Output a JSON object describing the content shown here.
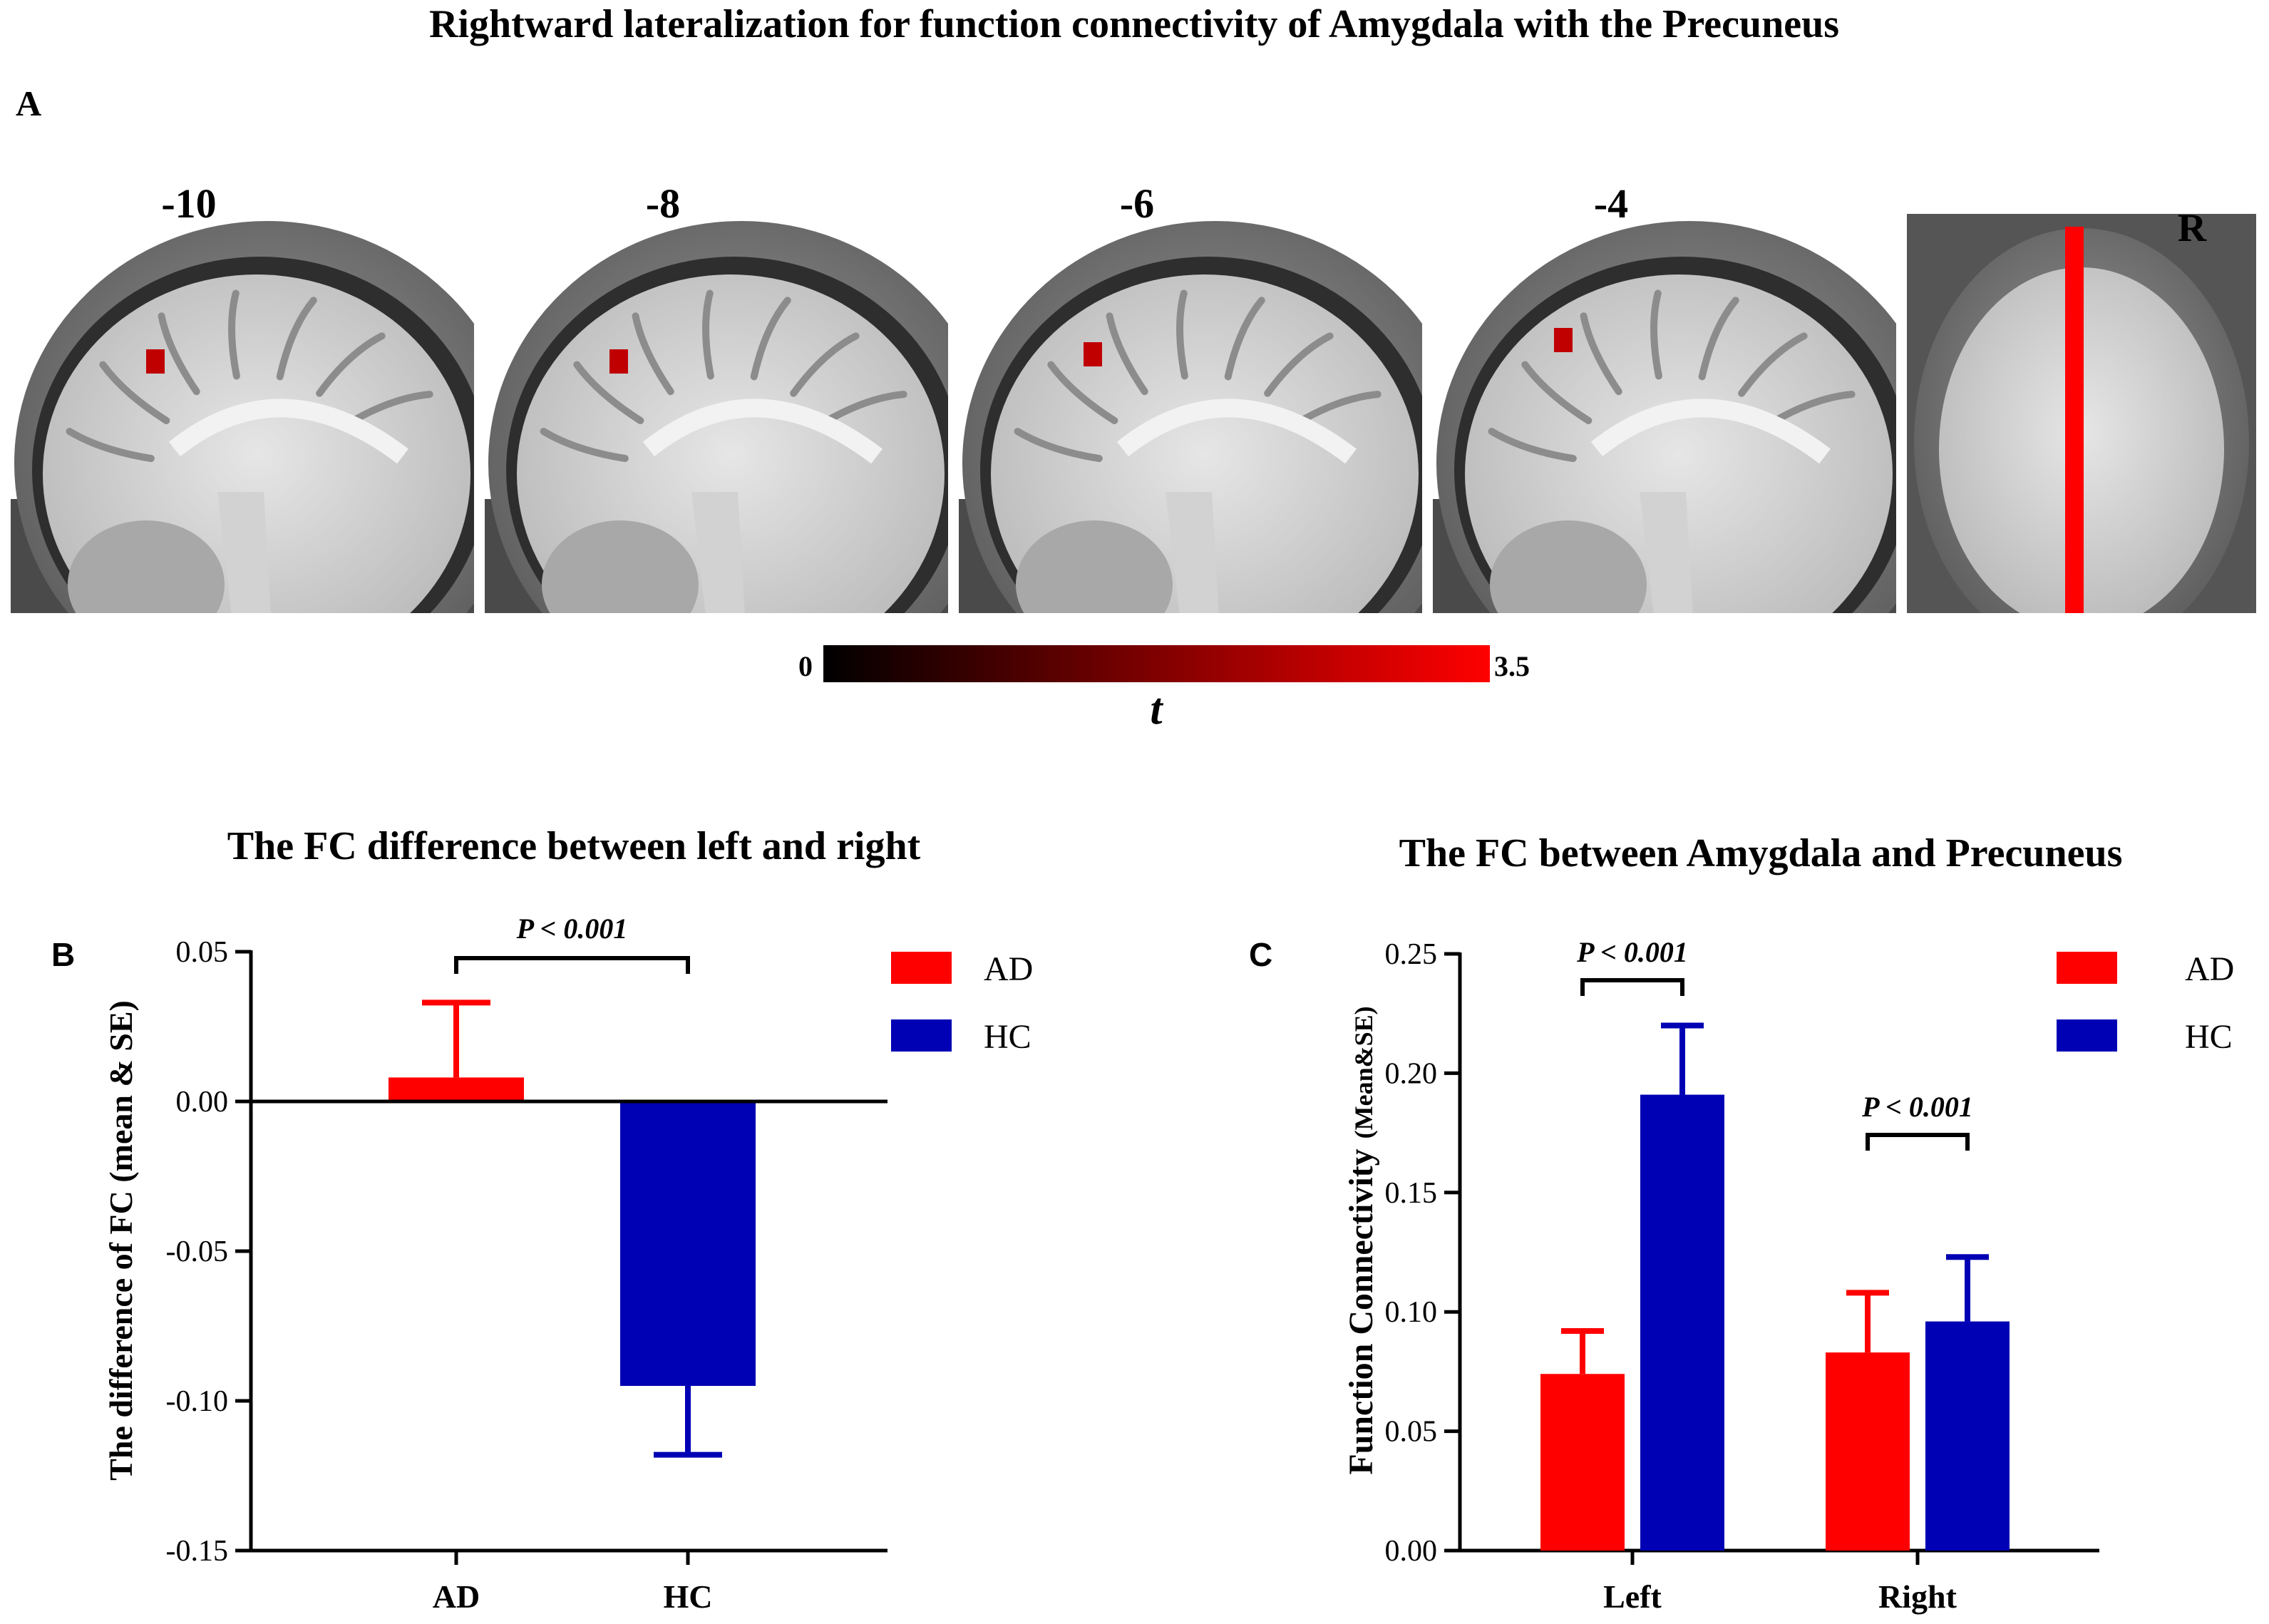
{
  "title": "Rightward lateralization for function connectivity of Amygdala with the Precuneus",
  "panel_a": {
    "label": "A",
    "slices": [
      {
        "label": "-10",
        "kind": "sagittal"
      },
      {
        "label": "-8",
        "kind": "sagittal"
      },
      {
        "label": "-6",
        "kind": "sagittal"
      },
      {
        "label": "-4",
        "kind": "sagittal"
      },
      {
        "label": "",
        "kind": "coronal"
      }
    ],
    "orientation_label": "R",
    "colorbar": {
      "min_label": "0",
      "max_label": "3.5",
      "symbol": "t",
      "colors": [
        "#000000",
        "#ff0000"
      ]
    }
  },
  "chart_data": [
    {
      "panel": "B",
      "type": "bar",
      "title": "The FC difference between left and right",
      "ylabel": "The difference of  FC (mean & SE)",
      "xlabel": "",
      "categories": [
        "AD",
        "HC"
      ],
      "values": [
        0.008,
        -0.095
      ],
      "errors": [
        0.025,
        0.023
      ],
      "colors": [
        "#ff0000",
        "#0000b4"
      ],
      "ylim": [
        -0.15,
        0.05
      ],
      "yticks": [
        0.05,
        0.0,
        -0.05,
        -0.1,
        -0.15
      ],
      "ytick_labels": [
        "0.05",
        "0.00",
        "-0.05",
        "-0.10",
        "-0.15"
      ],
      "legend": [
        {
          "name": "AD",
          "color": "#ff0000"
        },
        {
          "name": "HC",
          "color": "#0000b4"
        }
      ],
      "legend_position": "top-right",
      "annotation": "P < 0.001"
    },
    {
      "panel": "C",
      "type": "bar",
      "title": "The FC  between Amygdala and Precuneus",
      "ylabel_main": "Function Connectivity",
      "ylabel_sub": "(Mean&SE)",
      "xlabel": "",
      "categories": [
        "Left",
        "Right"
      ],
      "series": [
        {
          "name": "AD",
          "color": "#ff0000",
          "values": [
            0.074,
            0.083
          ],
          "errors": [
            0.018,
            0.025
          ]
        },
        {
          "name": "HC",
          "color": "#0000b4",
          "values": [
            0.191,
            0.096
          ],
          "errors": [
            0.029,
            0.027
          ]
        }
      ],
      "ylim": [
        0,
        0.25
      ],
      "yticks": [
        0,
        0.05,
        0.1,
        0.15,
        0.2,
        0.25
      ],
      "ytick_labels": [
        "0.00",
        "0.05",
        "0.10",
        "0.15",
        "0.20",
        "0.25"
      ],
      "legend_position": "top-right",
      "annotations": [
        "P < 0.001",
        "P < 0.001"
      ]
    }
  ]
}
